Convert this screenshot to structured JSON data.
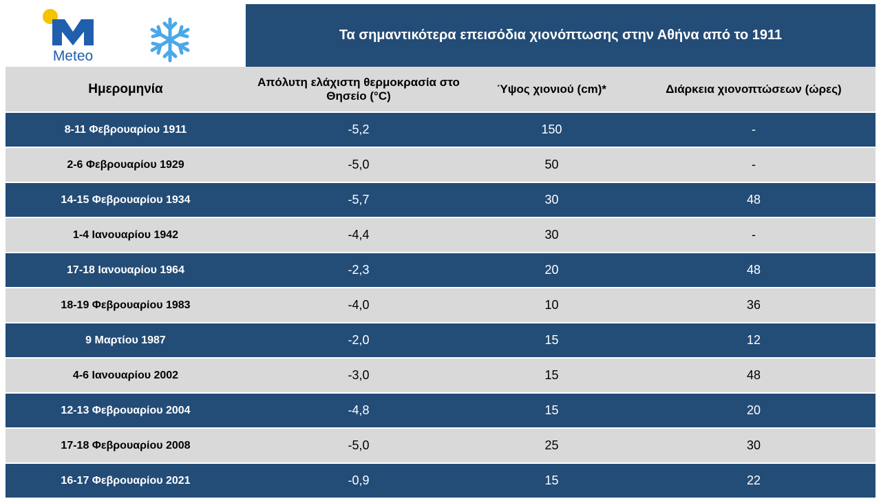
{
  "header": {
    "logo_text": "Meteo",
    "title": "Τα σημαντικότερα επεισόδια χιονόπτωσης στην Αθήνα από το 1911"
  },
  "table": {
    "columns": [
      "Ημερομηνία",
      "Απόλυτη ελάχιστη θερμοκρασία στο Θησείο (°C)",
      "Ύψος χιονιού (cm)*",
      "Διάρκεια χιονοπτώσεων (ώρες)"
    ],
    "rows": [
      [
        "8-11 Φεβρουαρίου 1911",
        "-5,2",
        "150",
        "-"
      ],
      [
        "2-6 Φεβρουαρίου 1929",
        "-5,0",
        "50",
        "-"
      ],
      [
        "14-15 Φεβρουαρίου 1934",
        "-5,7",
        "30",
        "48"
      ],
      [
        "1-4 Ιανουαρίου 1942",
        "-4,4",
        "30",
        "-"
      ],
      [
        "17-18 Ιανουαρίου 1964",
        "-2,3",
        "20",
        "48"
      ],
      [
        "18-19 Φεβρουαρίου 1983",
        "-4,0",
        "10",
        "36"
      ],
      [
        "9 Μαρτίου 1987",
        "-2,0",
        "15",
        "12"
      ],
      [
        "4-6 Ιανουαρίου 2002",
        "-3,0",
        "15",
        "48"
      ],
      [
        "12-13 Φεβρουαρίου 2004",
        "-4,8",
        "15",
        "20"
      ],
      [
        "17-18 Φεβρουαρίου 2008",
        "-5,0",
        "25",
        "30"
      ],
      [
        "16-17 Φεβρουαρίου 2021",
        "-0,9",
        "15",
        "22"
      ]
    ]
  }
}
